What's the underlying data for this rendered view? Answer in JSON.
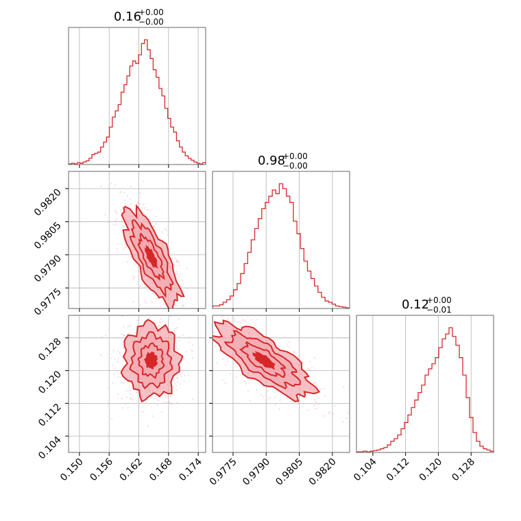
{
  "chart_data": {
    "type": "corner",
    "parameters": [
      {
        "title_main": "0.16",
        "title_sup": "+0.00",
        "title_sub": "−0.00",
        "center": 0.1645,
        "sigma": 0.0028,
        "lim": [
          0.1478,
          0.1755
        ],
        "ticks": [
          "0.150",
          "0.156",
          "0.162",
          "0.168",
          "0.174"
        ]
      },
      {
        "title_main": "0.98",
        "title_sup": "+0.00",
        "title_sub": "−0.00",
        "center": 0.9789,
        "sigma": 0.0011,
        "lim": [
          0.97657,
          0.98278
        ],
        "ticks": [
          "0.9775",
          "0.9790",
          "0.9805",
          "0.9820"
        ]
      },
      {
        "title_main": "0.12",
        "title_sup": "+0.00",
        "title_sub": "−0.01",
        "center": 0.1225,
        "sigma": 0.0045,
        "lim": [
          0.1,
          0.1335
        ],
        "ticks": [
          "0.104",
          "0.112",
          "0.120",
          "0.128"
        ]
      }
    ],
    "correlations": [
      [
        1,
        -0.75,
        0.0
      ],
      [
        -0.75,
        1,
        -0.75
      ],
      [
        0.0,
        -0.75,
        1
      ]
    ],
    "histograms": [
      [
        0.005,
        0.01,
        0.005,
        0.015,
        0.01,
        0.02,
        0.03,
        0.05,
        0.08,
        0.09,
        0.1,
        0.14,
        0.18,
        0.22,
        0.3,
        0.38,
        0.43,
        0.48,
        0.58,
        0.64,
        0.71,
        0.79,
        0.83,
        0.81,
        0.88,
        0.97,
        1.0,
        0.92,
        0.85,
        0.76,
        0.7,
        0.61,
        0.55,
        0.45,
        0.37,
        0.3,
        0.26,
        0.19,
        0.14,
        0.1,
        0.07,
        0.05,
        0.035,
        0.02,
        0.01,
        0.005,
        0.015
      ],
      [
        0.02,
        0.02,
        0.03,
        0.05,
        0.07,
        0.1,
        0.15,
        0.2,
        0.28,
        0.36,
        0.45,
        0.55,
        0.64,
        0.72,
        0.8,
        0.85,
        0.9,
        0.95,
        0.92,
        1.0,
        0.96,
        0.9,
        0.85,
        0.7,
        0.6,
        0.48,
        0.38,
        0.3,
        0.24,
        0.18,
        0.13,
        0.09,
        0.06,
        0.05,
        0.035,
        0.02,
        0.015,
        0.01,
        0.005
      ],
      [
        0.005,
        0.005,
        0.01,
        0.005,
        0.01,
        0.015,
        0.02,
        0.03,
        0.04,
        0.06,
        0.09,
        0.11,
        0.14,
        0.19,
        0.24,
        0.3,
        0.36,
        0.42,
        0.48,
        0.54,
        0.62,
        0.67,
        0.71,
        0.76,
        0.84,
        0.91,
        0.95,
        1.0,
        0.93,
        0.86,
        0.76,
        0.62,
        0.44,
        0.28,
        0.16,
        0.09,
        0.05,
        0.03,
        0.02,
        0.01
      ]
    ],
    "grid": true,
    "color": "#d62728",
    "fill_color": "#f2a7ae"
  }
}
